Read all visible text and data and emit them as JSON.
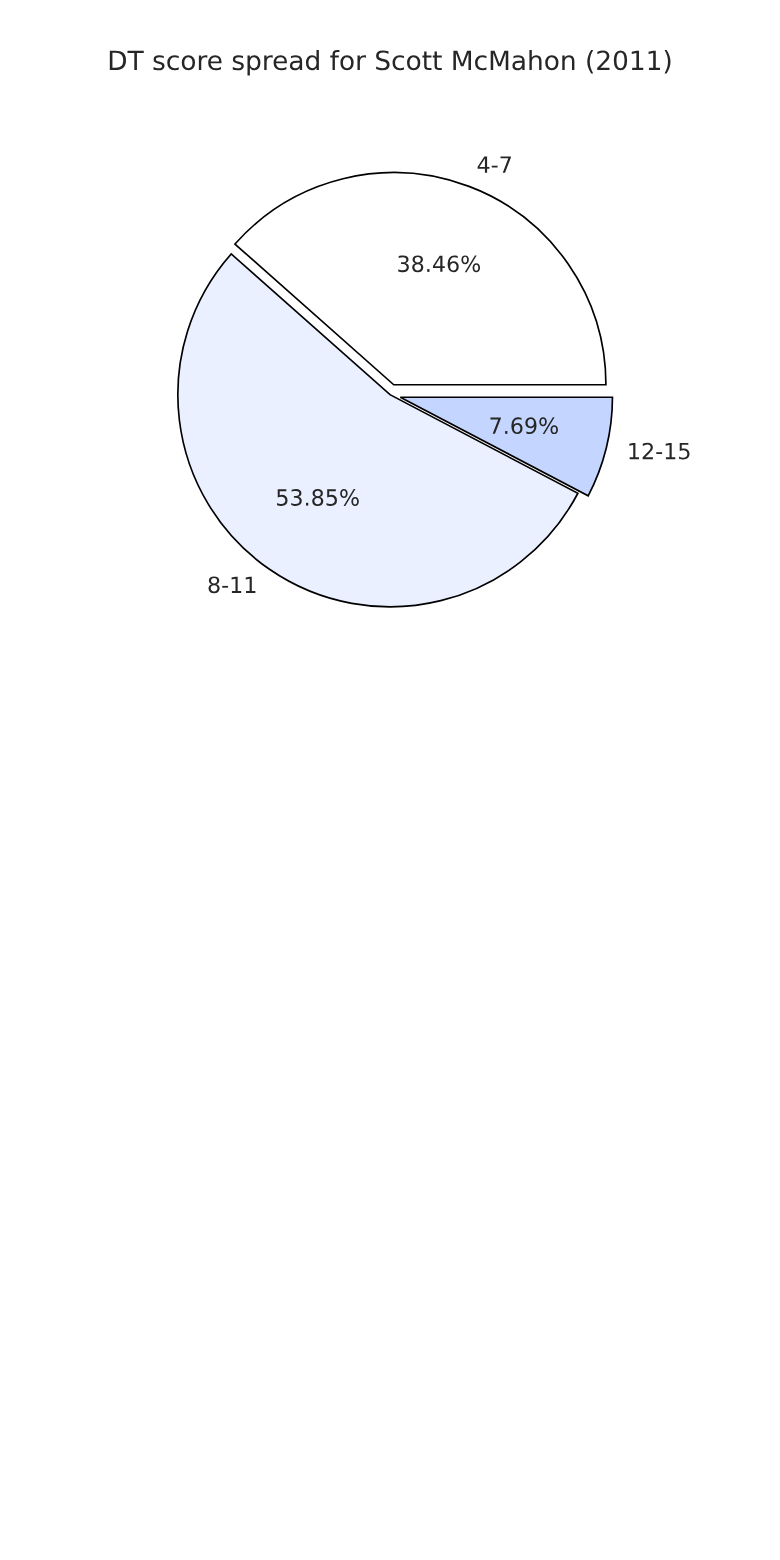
{
  "chart_data": {
    "type": "pie",
    "title": "DT score spread for Scott McMahon (2011)",
    "categories": [
      "4-7",
      "8-11",
      "12-15"
    ],
    "values": [
      38.46,
      53.85,
      7.69
    ],
    "value_labels": [
      "38.46%",
      "53.85%",
      "7.69%"
    ],
    "colors": [
      "#ffffff",
      "#eaf0ff",
      "#c4d6ff"
    ]
  }
}
